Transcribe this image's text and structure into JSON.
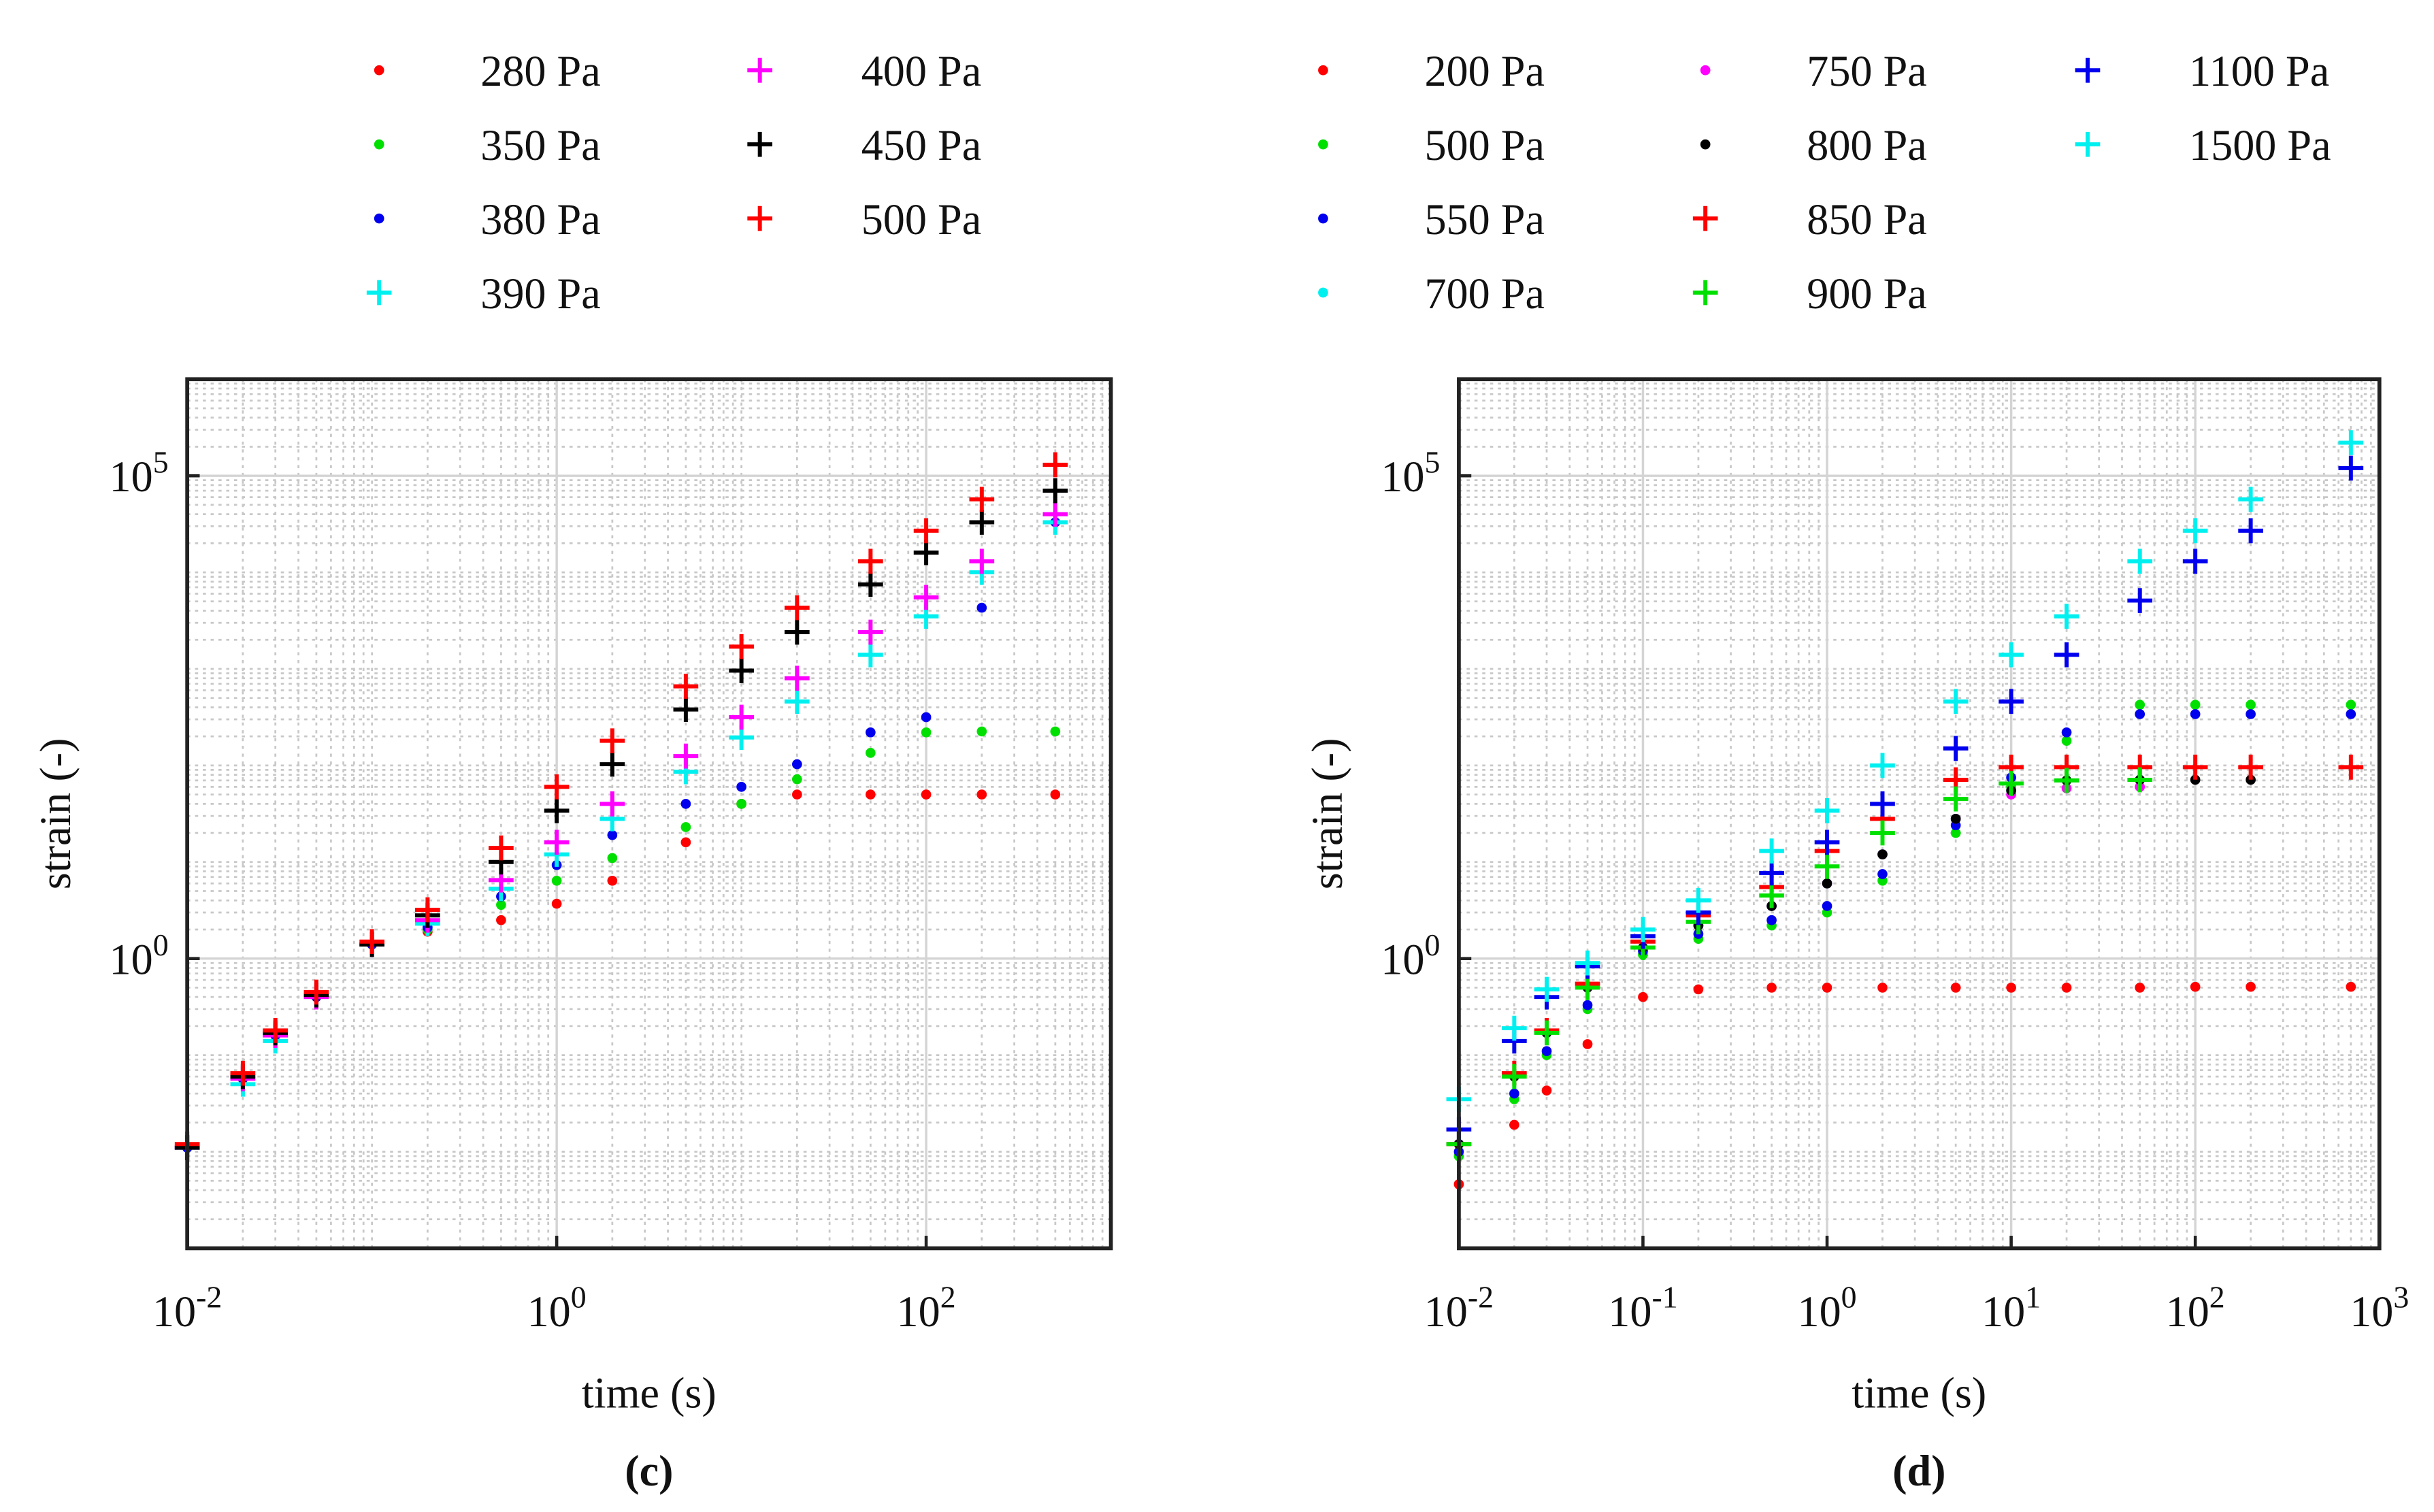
{
  "chart_data": [
    {
      "type": "scatter",
      "panel_label": "(c)",
      "x_label": "time (s)",
      "y_label": "strain (-)",
      "x_scale": "log",
      "y_scale": "log",
      "grid": true,
      "minor_grid": true,
      "xlim": [
        0.01,
        1000
      ],
      "ylim": [
        0.001,
        1000000
      ],
      "xticks": [
        {
          "value": 0.01,
          "label": "10^-2"
        },
        {
          "value": 1,
          "label": "10^0"
        },
        {
          "value": 100,
          "label": "10^2"
        }
      ],
      "yticks": [
        {
          "value": 1,
          "label": "10^0"
        },
        {
          "value": 100000,
          "label": "10^5"
        }
      ],
      "x": [
        0.01,
        0.02,
        0.03,
        0.05,
        0.1,
        0.2,
        0.5,
        1,
        2,
        5,
        10,
        20,
        50,
        100,
        200,
        500
      ],
      "series": [
        {
          "name": "280 Pa",
          "color": "#ff0000",
          "marker": "dot",
          "values": [
            0.011,
            0.057,
            0.16,
            0.4,
            1.4,
            1.9,
            2.5,
            3.7,
            6.4,
            16,
            40,
            50,
            50,
            50,
            50,
            50
          ]
        },
        {
          "name": "350 Pa",
          "color": "#00e000",
          "marker": "dot",
          "values": [
            0.011,
            0.057,
            0.16,
            0.4,
            1.4,
            2,
            3.6,
            6.4,
            11,
            23,
            40,
            72,
            135,
            220,
            225,
            225
          ]
        },
        {
          "name": "380 Pa",
          "color": "#0000ee",
          "marker": "dot",
          "values": [
            0.011,
            0.057,
            0.16,
            0.4,
            1.4,
            2.1,
            4.4,
            9.3,
            19,
            40,
            60,
            103,
            220,
            316,
            4300,
            33000
          ]
        },
        {
          "name": "390 Pa",
          "color": "#00f0f0",
          "marker": "plus",
          "values": [
            0.011,
            0.05,
            0.14,
            0.4,
            1.4,
            2.3,
            5.3,
            12,
            28,
            86,
            195,
            460,
            1400,
            3500,
            10000,
            33000
          ]
        },
        {
          "name": "400 Pa",
          "color": "#ff00ff",
          "marker": "plus",
          "values": [
            0.011,
            0.057,
            0.16,
            0.4,
            1.4,
            2.5,
            6.5,
            16,
            40,
            125,
            316,
            800,
            2400,
            5500,
            13000,
            40000
          ]
        },
        {
          "name": "450 Pa",
          "color": "#000000",
          "marker": "plus",
          "values": [
            0.011,
            0.06,
            0.17,
            0.42,
            1.4,
            2.8,
            10,
            34,
            103,
            380,
            960,
            2400,
            7500,
            16000,
            33000,
            70000
          ]
        },
        {
          "name": "500 Pa",
          "color": "#ff0000",
          "marker": "plus",
          "values": [
            0.012,
            0.065,
            0.18,
            0.45,
            1.5,
            3.2,
            14,
            60,
            180,
            660,
            1700,
            4300,
            13000,
            27000,
            57000,
            130000
          ]
        }
      ]
    },
    {
      "type": "scatter",
      "panel_label": "(d)",
      "x_label": "time (s)",
      "y_label": "strain (-)",
      "x_scale": "log",
      "y_scale": "log",
      "grid": true,
      "minor_grid": true,
      "xlim": [
        0.01,
        1000
      ],
      "ylim": [
        0.001,
        1000000
      ],
      "xticks": [
        {
          "value": 0.01,
          "label": "10^-2"
        },
        {
          "value": 0.1,
          "label": "10^-1"
        },
        {
          "value": 1,
          "label": "10^0"
        },
        {
          "value": 10,
          "label": "10^1"
        },
        {
          "value": 100,
          "label": "10^2"
        },
        {
          "value": 1000,
          "label": "10^3"
        }
      ],
      "yticks": [
        {
          "value": 1,
          "label": "10^0"
        },
        {
          "value": 100000,
          "label": "10^5"
        }
      ],
      "x": [
        0.01,
        0.02,
        0.03,
        0.05,
        0.1,
        0.2,
        0.5,
        1,
        2,
        5,
        10,
        20,
        50,
        100,
        200,
        700
      ],
      "series": [
        {
          "name": "200 Pa",
          "color": "#ff0000",
          "marker": "dot",
          "values": [
            0.0046,
            0.019,
            0.043,
            0.13,
            0.4,
            0.48,
            0.5,
            0.5,
            0.5,
            0.5,
            0.5,
            0.5,
            0.5,
            0.51,
            0.51,
            0.51
          ]
        },
        {
          "name": "500 Pa",
          "color": "#00e000",
          "marker": "dot",
          "values": [
            0.009,
            0.035,
            0.1,
            0.3,
            1.1,
            1.6,
            2.2,
            3,
            6.4,
            20,
            60,
            180,
            425,
            425,
            425,
            425
          ]
        },
        {
          "name": "550 Pa",
          "color": "#0000ee",
          "marker": "dot",
          "values": [
            0.01,
            0.04,
            0.11,
            0.33,
            1.2,
            1.8,
            2.5,
            3.5,
            7.5,
            24,
            75,
            220,
            340,
            340,
            340,
            340
          ]
        },
        {
          "name": "700 Pa",
          "color": "#00f0f0",
          "marker": "dot",
          "values": [
            0.012,
            0.06,
            0.17,
            0.5,
            1.3,
            2.2,
            3.5,
            6,
            12,
            28,
            55,
            70,
            71,
            null,
            null,
            null
          ]
        },
        {
          "name": "750 Pa",
          "color": "#ff00ff",
          "marker": "dot",
          "values": [
            0.012,
            0.06,
            0.17,
            0.5,
            1.3,
            2.2,
            3.5,
            6,
            12,
            28,
            50,
            58,
            60,
            null,
            null,
            null
          ]
        },
        {
          "name": "800 Pa",
          "color": "#000000",
          "marker": "dot",
          "values": [
            0.012,
            0.06,
            0.17,
            0.5,
            1.3,
            2.2,
            3.5,
            6,
            12,
            28,
            55,
            70,
            71,
            71,
            71,
            null
          ]
        },
        {
          "name": "850 Pa",
          "color": "#ff0000",
          "marker": "plus",
          "values": [
            0.012,
            0.065,
            0.18,
            0.55,
            1.5,
            2.8,
            5.5,
            13,
            28,
            71,
            96,
            96,
            96,
            96,
            96,
            96
          ]
        },
        {
          "name": "900 Pa",
          "color": "#00e000",
          "marker": "plus",
          "values": [
            0.012,
            0.06,
            0.17,
            0.5,
            1.3,
            2.4,
            4.5,
            9,
            20,
            45,
            65,
            70,
            71,
            null,
            null,
            null
          ]
        },
        {
          "name": "1100 Pa",
          "color": "#0000ee",
          "marker": "plus",
          "values": [
            0.017,
            0.14,
            0.4,
            0.83,
            1.7,
            3,
            7.7,
            16,
            40,
            150,
            460,
            1400,
            5100,
            13000,
            27000,
            120000
          ]
        },
        {
          "name": "1500 Pa",
          "color": "#00f0f0",
          "marker": "plus",
          "values": [
            0.035,
            0.19,
            0.48,
            0.9,
            2,
            4,
            13,
            34,
            100,
            460,
            1400,
            3500,
            13000,
            27000,
            57000,
            220000
          ]
        }
      ]
    }
  ]
}
